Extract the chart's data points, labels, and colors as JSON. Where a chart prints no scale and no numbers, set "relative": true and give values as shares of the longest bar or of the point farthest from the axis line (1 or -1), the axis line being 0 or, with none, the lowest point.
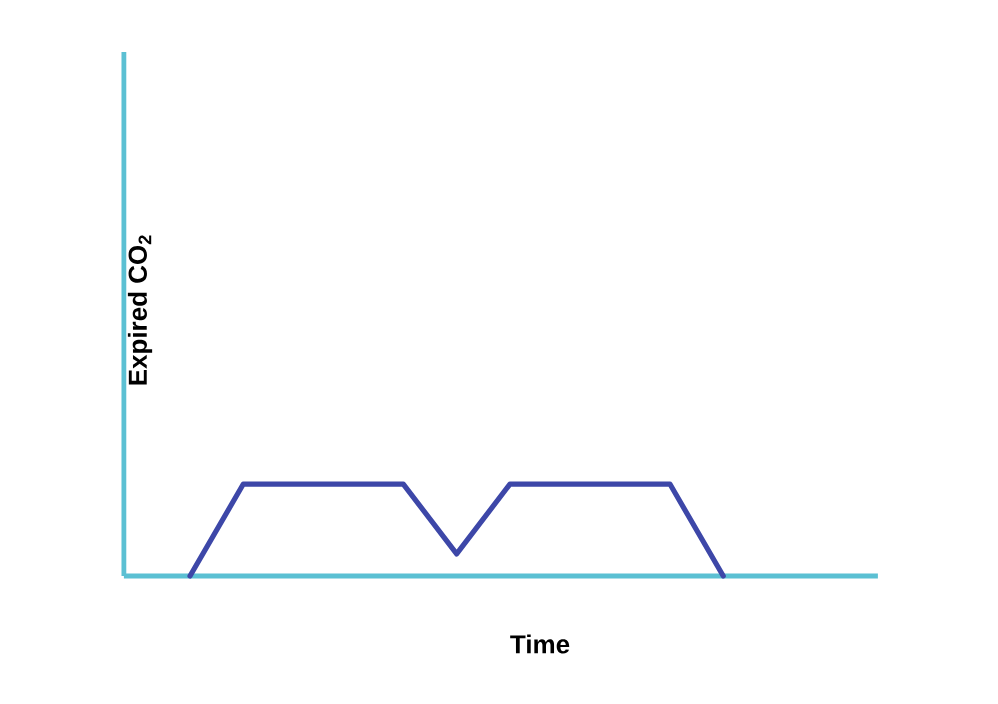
{
  "chart_data": {
    "type": "line",
    "relative": true,
    "xlabel": "**Time**",
    "ylabel": "**Expired CO$_{2}$**",
    "categories": [
      null,
      null,
      null,
      null,
      null,
      null,
      null,
      null,
      null,
      null,
      null
    ],
    "line_style": "solid",
    "marker": "none",
    "series": [
      {
        "color": "#3d47a8",
        "values": [
          0,
          1,
          1,
          1,
          1,
          0.24,
          1,
          1,
          1,
          1,
          0
        ]
      }
    ]
  }
}
